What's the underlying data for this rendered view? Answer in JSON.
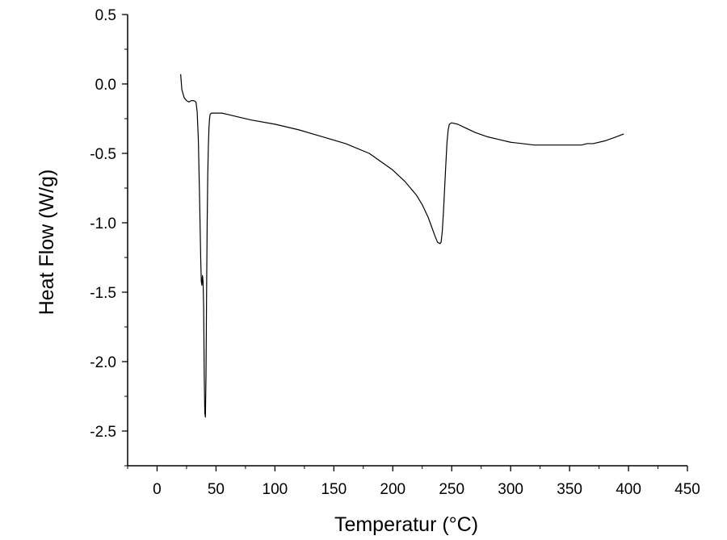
{
  "chart_data": {
    "type": "line",
    "title": "",
    "xlabel": "Temperatur (°C)",
    "ylabel": "Heat Flow (W/g)",
    "xlim": [
      -25,
      450
    ],
    "ylim": [
      -2.75,
      0.5
    ],
    "xticks": [
      0,
      50,
      100,
      150,
      200,
      250,
      300,
      350,
      400,
      450
    ],
    "xtick_labels": [
      "0",
      "50",
      "100",
      "150",
      "200",
      "250",
      "300",
      "350",
      "400",
      "450"
    ],
    "yticks": [
      0.5,
      0.0,
      -0.5,
      -1.0,
      -1.5,
      -2.0,
      -2.5
    ],
    "ytick_labels": [
      "0.5",
      "0.0",
      "-0.5",
      "-1.0",
      "-1.5",
      "-2.0",
      "-2.5"
    ],
    "grid": false,
    "color": "#000000",
    "series": [
      {
        "x": [
          20,
          21,
          23,
          25,
          27,
          29,
          31,
          33,
          34,
          35,
          36,
          37,
          37.5,
          38,
          38.5,
          39,
          39.5,
          40,
          40.5,
          41,
          41.5,
          42,
          42.5,
          43,
          43.5,
          44,
          44.5,
          45,
          46,
          47,
          48,
          50,
          55,
          60,
          70,
          80,
          100,
          120,
          140,
          160,
          180,
          200,
          210,
          220,
          225,
          230,
          233,
          236,
          238,
          240,
          241,
          242,
          243,
          244,
          245,
          246,
          247,
          248,
          250,
          255,
          260,
          270,
          280,
          290,
          300,
          310,
          320,
          330,
          340,
          350,
          360,
          365,
          370,
          380,
          390,
          396
        ],
        "y": [
          0.07,
          -0.04,
          -0.1,
          -0.12,
          -0.13,
          -0.12,
          -0.12,
          -0.13,
          -0.2,
          -0.4,
          -0.8,
          -1.25,
          -1.42,
          -1.45,
          -1.38,
          -1.42,
          -1.6,
          -2.1,
          -2.37,
          -2.4,
          -2.1,
          -1.5,
          -1.0,
          -0.65,
          -0.45,
          -0.32,
          -0.25,
          -0.22,
          -0.21,
          -0.21,
          -0.21,
          -0.21,
          -0.21,
          -0.22,
          -0.24,
          -0.26,
          -0.29,
          -0.33,
          -0.38,
          -0.43,
          -0.5,
          -0.62,
          -0.7,
          -0.8,
          -0.87,
          -0.96,
          -1.03,
          -1.1,
          -1.14,
          -1.15,
          -1.14,
          -1.06,
          -0.92,
          -0.75,
          -0.58,
          -0.42,
          -0.33,
          -0.29,
          -0.28,
          -0.29,
          -0.31,
          -0.35,
          -0.38,
          -0.4,
          -0.42,
          -0.43,
          -0.44,
          -0.44,
          -0.44,
          -0.44,
          -0.44,
          -0.43,
          -0.43,
          -0.41,
          -0.38,
          -0.36
        ]
      }
    ]
  }
}
